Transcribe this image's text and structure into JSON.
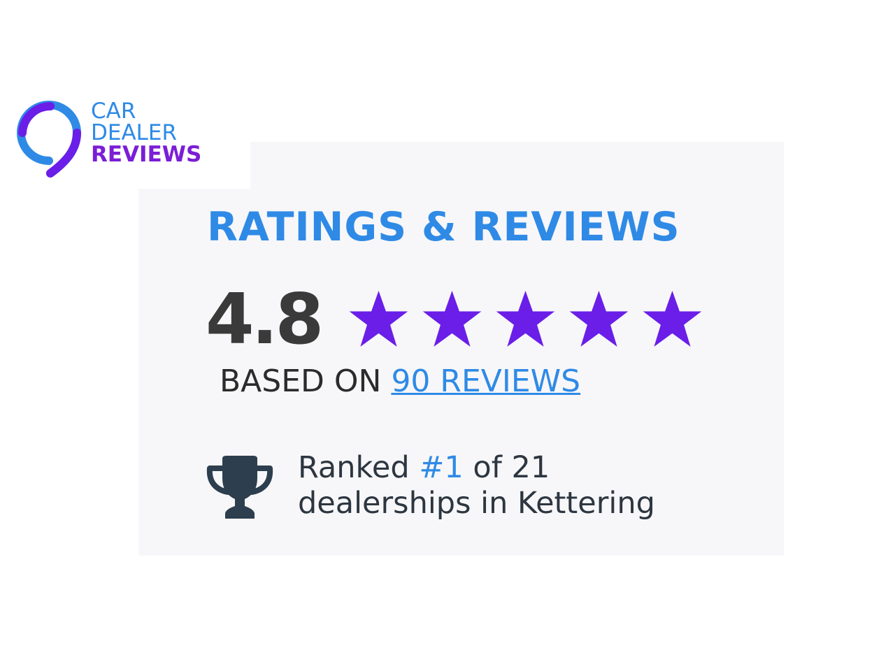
{
  "logo": {
    "line1": "CAR",
    "line2": "DEALER",
    "line3": "REVIEWS"
  },
  "widget": {
    "title": "RATINGS & REVIEWS",
    "score": "4.8",
    "stars": 5,
    "based_on": "BASED ON",
    "reviews_link": "90 REVIEWS",
    "rank_prefix": "Ranked",
    "rank_value": "#1",
    "rank_suffix": "of 21",
    "rank_line2": "dealerships in Kettering"
  },
  "colors": {
    "blue": "#2f8ae6",
    "purple": "#6a1ee8",
    "panel": "#f7f7f9",
    "trophy": "#2d3e4e"
  },
  "icons": [
    "star-icon",
    "trophy-icon"
  ]
}
